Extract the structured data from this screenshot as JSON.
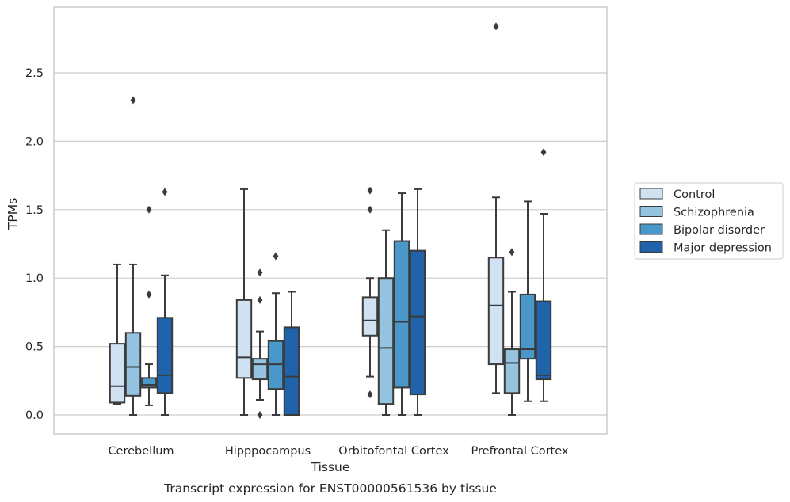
{
  "chart_data": {
    "type": "boxplot",
    "title": "Transcript expression for ENST00000561536 by tissue",
    "xlabel": "Tissue",
    "ylabel": "TPMs",
    "ylim": [
      -0.14,
      2.98
    ],
    "yticks": [
      0.0,
      0.5,
      1.0,
      1.5,
      2.0,
      2.5
    ],
    "ytick_labels": [
      "0.0",
      "0.5",
      "1.0",
      "1.5",
      "2.0",
      "2.5"
    ],
    "grid": "horizontal",
    "legend_position": "right",
    "categories": [
      "Cerebellum",
      "Hipppocampus",
      "Orbitofontal Cortex",
      "Prefrontal Cortex"
    ],
    "series": [
      {
        "name": "Control",
        "color": "#d0e1f2",
        "boxes": [
          {
            "whislo": 0.08,
            "q1": 0.09,
            "med": 0.21,
            "q3": 0.52,
            "whishi": 1.1,
            "fliers": []
          },
          {
            "whislo": 0.0,
            "q1": 0.27,
            "med": 0.42,
            "q3": 0.84,
            "whishi": 1.65,
            "fliers": []
          },
          {
            "whislo": 0.28,
            "q1": 0.58,
            "med": 0.69,
            "q3": 0.86,
            "whishi": 1.0,
            "fliers": [
              0.15,
              1.5,
              1.64
            ]
          },
          {
            "whislo": 0.16,
            "q1": 0.37,
            "med": 0.8,
            "q3": 1.15,
            "whishi": 1.59,
            "fliers": [
              2.84
            ]
          }
        ]
      },
      {
        "name": "Schizophrenia",
        "color": "#94c4df",
        "boxes": [
          {
            "whislo": 0.0,
            "q1": 0.14,
            "med": 0.35,
            "q3": 0.6,
            "whishi": 1.1,
            "fliers": [
              2.3
            ]
          },
          {
            "whislo": 0.11,
            "q1": 0.26,
            "med": 0.37,
            "q3": 0.41,
            "whishi": 0.61,
            "fliers": [
              0.0,
              0.84,
              1.04
            ]
          },
          {
            "whislo": 0.0,
            "q1": 0.08,
            "med": 0.49,
            "q3": 1.0,
            "whishi": 1.35,
            "fliers": []
          },
          {
            "whislo": 0.0,
            "q1": 0.16,
            "med": 0.38,
            "q3": 0.48,
            "whishi": 0.9,
            "fliers": [
              1.19
            ]
          }
        ]
      },
      {
        "name": "Bipolar disorder",
        "color": "#4a98c9",
        "boxes": [
          {
            "whislo": 0.07,
            "q1": 0.2,
            "med": 0.22,
            "q3": 0.27,
            "whishi": 0.37,
            "fliers": [
              0.88,
              1.5
            ]
          },
          {
            "whislo": 0.0,
            "q1": 0.19,
            "med": 0.37,
            "q3": 0.54,
            "whishi": 0.89,
            "fliers": [
              1.16
            ]
          },
          {
            "whislo": 0.0,
            "q1": 0.2,
            "med": 0.68,
            "q3": 1.27,
            "whishi": 1.62,
            "fliers": []
          },
          {
            "whislo": 0.1,
            "q1": 0.41,
            "med": 0.48,
            "q3": 0.88,
            "whishi": 1.56,
            "fliers": []
          }
        ]
      },
      {
        "name": "Major depression",
        "color": "#2163aa",
        "boxes": [
          {
            "whislo": 0.0,
            "q1": 0.16,
            "med": 0.29,
            "q3": 0.71,
            "whishi": 1.02,
            "fliers": [
              1.63
            ]
          },
          {
            "whislo": 0.0,
            "q1": 0.0,
            "med": 0.28,
            "q3": 0.64,
            "whishi": 0.9,
            "fliers": []
          },
          {
            "whislo": 0.0,
            "q1": 0.15,
            "med": 0.72,
            "q3": 1.2,
            "whishi": 1.65,
            "fliers": []
          },
          {
            "whislo": 0.1,
            "q1": 0.26,
            "med": 0.29,
            "q3": 0.83,
            "whishi": 1.47,
            "fliers": [
              1.92
            ]
          }
        ]
      }
    ]
  }
}
